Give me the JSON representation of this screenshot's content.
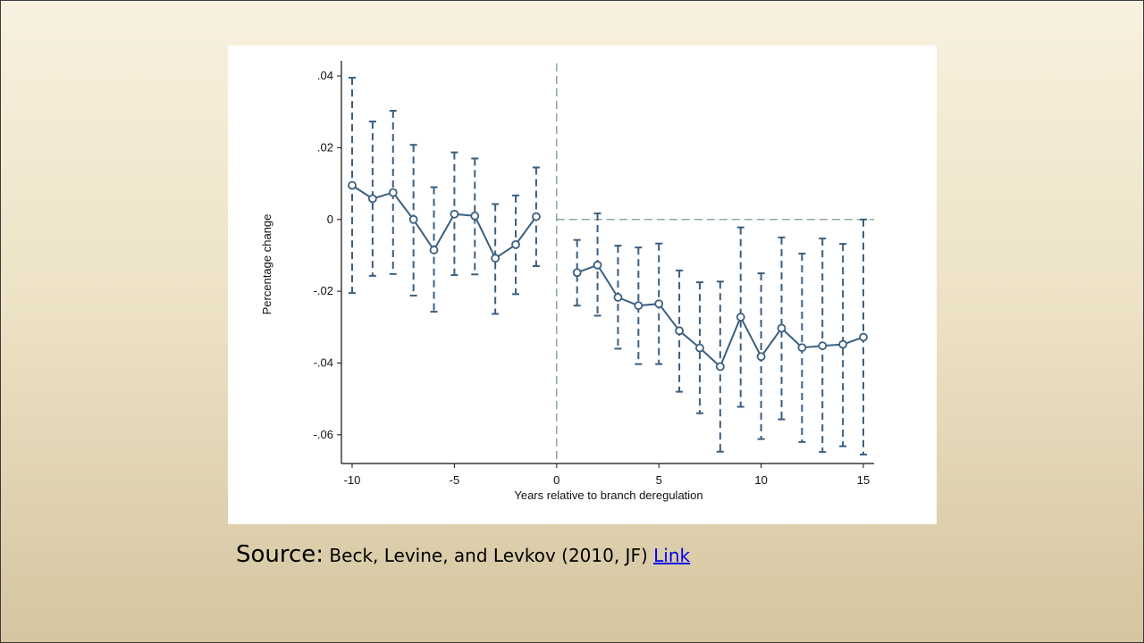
{
  "caption": {
    "label": "Source:",
    "text": " Beck, Levine, and Levkov (2010, JF) ",
    "link_text": "Link"
  },
  "colors": {
    "series": "#3a5f80",
    "reference_line": "#7a9a8a",
    "axis": "#111111",
    "link": "#0000ee"
  },
  "chart_data": {
    "type": "line",
    "title": "",
    "xlabel": "Years relative to branch deregulation",
    "ylabel": "Percentage change",
    "xlim": [
      -10,
      15
    ],
    "ylim": [
      -0.068,
      0.043
    ],
    "x_ticks": [
      {
        "value": -10,
        "label": "-10"
      },
      {
        "value": -5,
        "label": "-5"
      },
      {
        "value": 0,
        "label": "0"
      },
      {
        "value": 5,
        "label": "5"
      },
      {
        "value": 10,
        "label": "10"
      },
      {
        "value": 15,
        "label": "15"
      }
    ],
    "y_ticks": [
      {
        "value": 0.04,
        "label": ".04"
      },
      {
        "value": 0.02,
        "label": ".02"
      },
      {
        "value": 0,
        "label": "0"
      },
      {
        "value": -0.02,
        "label": "-.02"
      },
      {
        "value": -0.04,
        "label": "-.04"
      },
      {
        "value": -0.06,
        "label": "-.06"
      }
    ],
    "reference_lines": {
      "x": 0,
      "y": 0
    },
    "grid": false,
    "series": [
      {
        "segment": "pre",
        "points": [
          {
            "x": -10,
            "y": 0.0095,
            "lo": -0.0205,
            "hi": 0.0395
          },
          {
            "x": -9,
            "y": 0.0058,
            "lo": -0.0157,
            "hi": 0.0273
          },
          {
            "x": -8,
            "y": 0.0075,
            "lo": -0.0152,
            "hi": 0.0303
          },
          {
            "x": -7,
            "y": 0.0,
            "lo": -0.0212,
            "hi": 0.0208
          },
          {
            "x": -6,
            "y": -0.0085,
            "lo": -0.0257,
            "hi": 0.009
          },
          {
            "x": -5,
            "y": 0.0015,
            "lo": -0.0155,
            "hi": 0.0187
          },
          {
            "x": -4,
            "y": 0.001,
            "lo": -0.0153,
            "hi": 0.017
          },
          {
            "x": -3,
            "y": -0.0108,
            "lo": -0.0263,
            "hi": 0.0043
          },
          {
            "x": -2,
            "y": -0.007,
            "lo": -0.0208,
            "hi": 0.0067
          },
          {
            "x": -1,
            "y": 0.0008,
            "lo": -0.013,
            "hi": 0.0145
          }
        ]
      },
      {
        "segment": "post",
        "points": [
          {
            "x": 1,
            "y": -0.0148,
            "lo": -0.024,
            "hi": -0.0057
          },
          {
            "x": 2,
            "y": -0.0127,
            "lo": -0.0268,
            "hi": 0.0017
          },
          {
            "x": 3,
            "y": -0.0217,
            "lo": -0.036,
            "hi": -0.0073
          },
          {
            "x": 4,
            "y": -0.024,
            "lo": -0.0403,
            "hi": -0.0078
          },
          {
            "x": 5,
            "y": -0.0235,
            "lo": -0.0403,
            "hi": -0.0067
          },
          {
            "x": 6,
            "y": -0.031,
            "lo": -0.048,
            "hi": -0.0142
          },
          {
            "x": 7,
            "y": -0.0358,
            "lo": -0.054,
            "hi": -0.0175
          },
          {
            "x": 8,
            "y": -0.041,
            "lo": -0.0647,
            "hi": -0.0173
          },
          {
            "x": 9,
            "y": -0.0272,
            "lo": -0.0522,
            "hi": -0.0022
          },
          {
            "x": 10,
            "y": -0.0382,
            "lo": -0.0612,
            "hi": -0.015
          },
          {
            "x": 11,
            "y": -0.0303,
            "lo": -0.0557,
            "hi": -0.005
          },
          {
            "x": 12,
            "y": -0.0357,
            "lo": -0.062,
            "hi": -0.0095
          },
          {
            "x": 13,
            "y": -0.0352,
            "lo": -0.0648,
            "hi": -0.0053
          },
          {
            "x": 14,
            "y": -0.0348,
            "lo": -0.0632,
            "hi": -0.0068
          },
          {
            "x": 15,
            "y": -0.0328,
            "lo": -0.0655,
            "hi": 0.0
          }
        ]
      }
    ]
  }
}
